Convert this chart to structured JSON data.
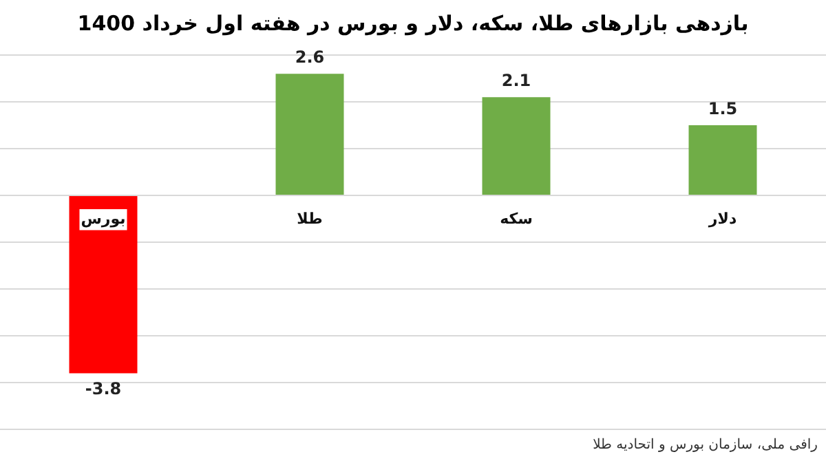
{
  "chart_data": {
    "type": "bar",
    "title": "بازدهی بازارهای طلا، سکه، دلار و بورس در هفته اول خرداد 1400",
    "categories": [
      "بورس",
      "طلا",
      "سکه",
      "دلار"
    ],
    "values": [
      -3.8,
      2.6,
      2.1,
      1.5
    ],
    "colors": [
      "#ff0000",
      "#70ad47",
      "#70ad47",
      "#70ad47"
    ],
    "ylim": [
      -5,
      3
    ],
    "yticks": [
      {
        "value": -5,
        "label": null
      },
      {
        "value": -4,
        "label": null
      },
      {
        "value": -3,
        "label": null
      },
      {
        "value": -2,
        "label": null
      },
      {
        "value": -1,
        "label": null
      },
      {
        "value": 0,
        "label": null
      },
      {
        "value": 1,
        "label": null
      },
      {
        "value": 2,
        "label": null
      },
      {
        "value": 3,
        "label": null
      }
    ],
    "tick_labels": "x",
    "grid": "y",
    "data_labels": true,
    "annotations": [
      "رافی ملی، سازمان بورس و اتحادیه طلا"
    ]
  }
}
